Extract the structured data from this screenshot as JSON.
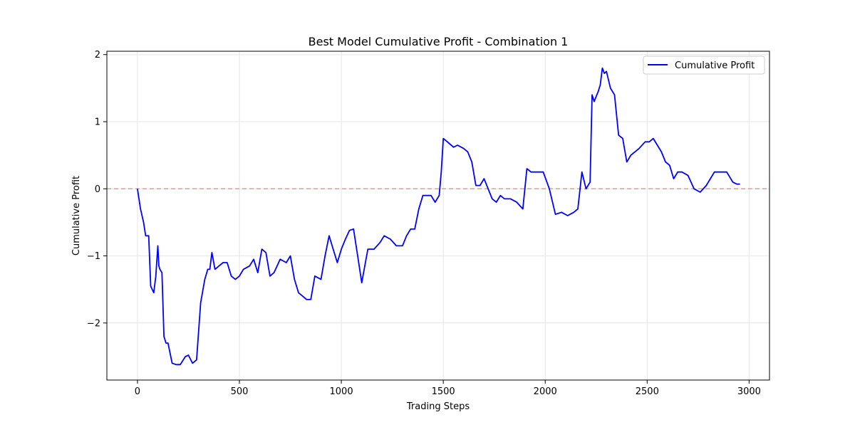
{
  "chart_data": {
    "type": "line",
    "title": "Best Model Cumulative Profit - Combination 1",
    "xlabel": "Trading Steps",
    "ylabel": "Cumulative Profit",
    "xlim": [
      -150,
      3100
    ],
    "ylim": [
      -2.85,
      2.05
    ],
    "xticks": [
      0,
      500,
      1000,
      1500,
      2000,
      2500,
      3000
    ],
    "xtick_labels": [
      "0",
      "500",
      "1000",
      "1500",
      "2000",
      "2500",
      "3000"
    ],
    "yticks": [
      -2,
      -1,
      0,
      1,
      2
    ],
    "ytick_labels": [
      "−2",
      "−1",
      "0",
      "1",
      "2"
    ],
    "grid": true,
    "legend_position": "top-right",
    "reference_line": {
      "y": 0,
      "color": "#f08080",
      "style": "dashed"
    },
    "series": [
      {
        "name": "Cumulative Profit",
        "color": "#0000ff",
        "x": [
          0,
          15,
          30,
          40,
          55,
          65,
          80,
          90,
          100,
          105,
          110,
          120,
          130,
          140,
          150,
          170,
          190,
          210,
          235,
          250,
          270,
          290,
          310,
          330,
          345,
          355,
          365,
          380,
          400,
          420,
          440,
          460,
          480,
          500,
          520,
          550,
          570,
          590,
          610,
          630,
          650,
          670,
          700,
          730,
          750,
          770,
          790,
          810,
          830,
          850,
          870,
          900,
          920,
          940,
          960,
          980,
          1000,
          1020,
          1040,
          1060,
          1080,
          1100,
          1130,
          1160,
          1190,
          1210,
          1240,
          1270,
          1300,
          1320,
          1340,
          1360,
          1380,
          1400,
          1420,
          1440,
          1460,
          1480,
          1490,
          1500,
          1520,
          1550,
          1570,
          1600,
          1620,
          1640,
          1660,
          1680,
          1700,
          1720,
          1740,
          1760,
          1780,
          1800,
          1830,
          1860,
          1890,
          1910,
          1930,
          1960,
          1990,
          2020,
          2050,
          2080,
          2110,
          2140,
          2160,
          2180,
          2200,
          2220,
          2230,
          2240,
          2260,
          2270,
          2280,
          2290,
          2300,
          2320,
          2340,
          2360,
          2380,
          2400,
          2420,
          2440,
          2460,
          2490,
          2510,
          2530,
          2550,
          2570,
          2590,
          2610,
          2630,
          2650,
          2670,
          2700,
          2730,
          2760,
          2790,
          2810,
          2830,
          2860,
          2890,
          2920,
          2940,
          2955
        ],
        "y": [
          0.0,
          -0.3,
          -0.5,
          -0.7,
          -0.7,
          -1.45,
          -1.55,
          -1.3,
          -0.85,
          -1.15,
          -1.2,
          -1.25,
          -2.2,
          -2.3,
          -2.3,
          -2.6,
          -2.62,
          -2.62,
          -2.5,
          -2.48,
          -2.6,
          -2.55,
          -1.7,
          -1.35,
          -1.2,
          -1.2,
          -0.95,
          -1.2,
          -1.15,
          -1.1,
          -1.1,
          -1.3,
          -1.35,
          -1.3,
          -1.2,
          -1.15,
          -1.05,
          -1.25,
          -0.9,
          -0.95,
          -1.3,
          -1.25,
          -1.05,
          -1.1,
          -1.0,
          -1.35,
          -1.55,
          -1.6,
          -1.65,
          -1.65,
          -1.3,
          -1.35,
          -1.0,
          -0.7,
          -0.9,
          -1.1,
          -0.9,
          -0.75,
          -0.62,
          -0.6,
          -1.0,
          -1.4,
          -0.9,
          -0.9,
          -0.8,
          -0.7,
          -0.75,
          -0.85,
          -0.85,
          -0.7,
          -0.6,
          -0.6,
          -0.3,
          -0.1,
          -0.1,
          -0.1,
          -0.2,
          -0.1,
          0.25,
          0.75,
          0.7,
          0.62,
          0.65,
          0.6,
          0.55,
          0.4,
          0.05,
          0.05,
          0.15,
          0.0,
          -0.15,
          -0.2,
          -0.1,
          -0.15,
          -0.15,
          -0.2,
          -0.3,
          0.3,
          0.25,
          0.25,
          0.25,
          0.0,
          -0.38,
          -0.35,
          -0.4,
          -0.35,
          -0.3,
          0.25,
          0.0,
          0.1,
          1.4,
          1.3,
          1.45,
          1.55,
          1.8,
          1.72,
          1.75,
          1.5,
          1.4,
          0.8,
          0.75,
          0.4,
          0.5,
          0.55,
          0.6,
          0.7,
          0.7,
          0.75,
          0.65,
          0.55,
          0.4,
          0.35,
          0.15,
          0.25,
          0.25,
          0.2,
          0.0,
          -0.05,
          0.05,
          0.15,
          0.25,
          0.25,
          0.25,
          0.1,
          0.07,
          0.07
        ]
      }
    ]
  }
}
